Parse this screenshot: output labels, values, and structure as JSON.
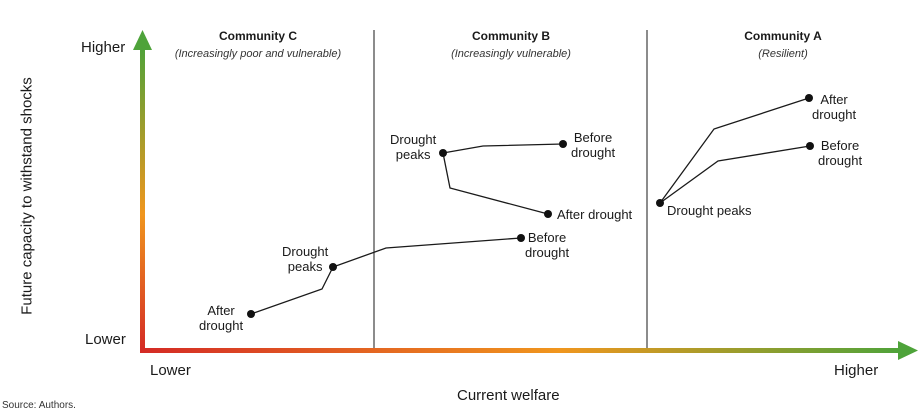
{
  "y_axis": {
    "title": "Future capacity to withstand shocks",
    "high": "Higher",
    "low": "Lower"
  },
  "x_axis": {
    "title": "Current welfare",
    "low": "Lower",
    "high": "Higher"
  },
  "communities": [
    {
      "name": "Community C",
      "subtitle": "(Increasingly poor and vulnerable)"
    },
    {
      "name": "Community B",
      "subtitle": "(Increasingly vulnerable)"
    },
    {
      "name": "Community A",
      "subtitle": "(Resilient)"
    }
  ],
  "labels": {
    "c_drought_peaks": [
      "Drought",
      "peaks"
    ],
    "c_after_drought": [
      "After",
      "drought"
    ],
    "b_drought_peaks": [
      "Drought",
      "peaks"
    ],
    "b_before_drought_1": [
      "Before",
      "drought"
    ],
    "b_after_drought": "After drought",
    "b_before_drought_2": [
      "Before",
      "drought"
    ],
    "a_after_drought": [
      "After",
      "drought"
    ],
    "a_before_drought": [
      "Before",
      "drought"
    ],
    "a_drought_peaks": "Drought peaks"
  },
  "source": "Source: Authors.",
  "colors": {
    "gradient_low": "#d42a25",
    "gradient_mid": "#f0961e",
    "gradient_high": "#4ea33a",
    "line": "#1a1a1a"
  }
}
